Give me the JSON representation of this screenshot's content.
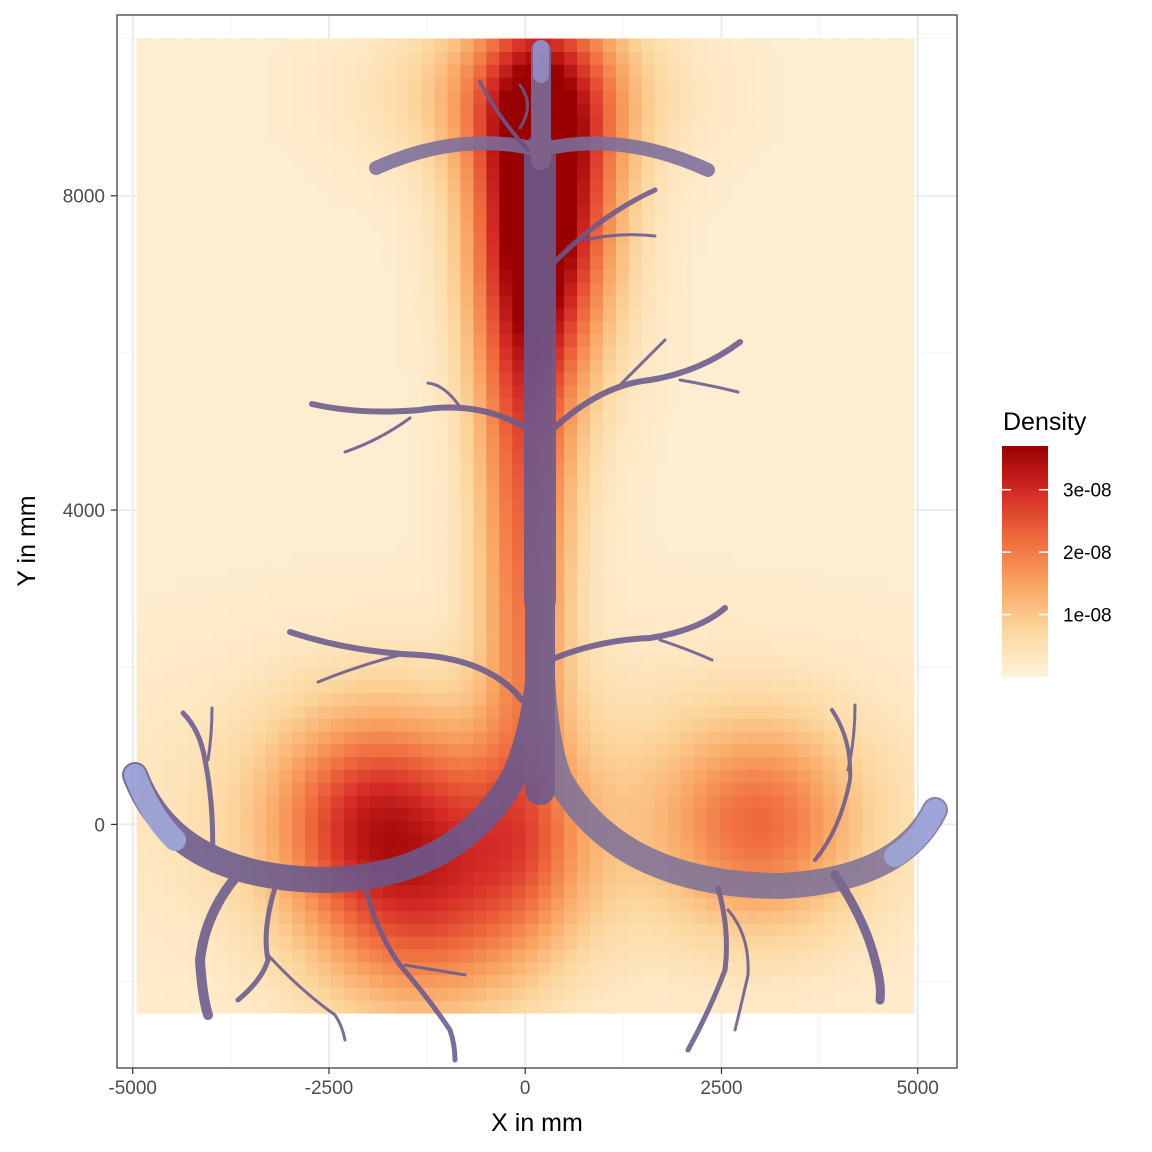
{
  "chart_data": {
    "type": "heatmap",
    "title": "",
    "xlabel": "X in mm",
    "ylabel": "Y in mm",
    "xlim": [
      -5200,
      5500
    ],
    "ylim": [
      -3100,
      10300
    ],
    "density_extent": {
      "x": [
        -4950,
        4950
      ],
      "y": [
        -2400,
        10000
      ]
    },
    "x_ticks": [
      {
        "value": -5000,
        "label": "-5000"
      },
      {
        "value": -2500,
        "label": "-2500"
      },
      {
        "value": 0,
        "label": "0"
      },
      {
        "value": 2500,
        "label": "2500"
      },
      {
        "value": 5000,
        "label": "5000"
      }
    ],
    "y_ticks": [
      {
        "value": 0,
        "label": "0"
      },
      {
        "value": 4000,
        "label": "4000"
      },
      {
        "value": 8000,
        "label": "8000"
      }
    ],
    "grid": true,
    "legend": {
      "title": "Density",
      "placement": "right",
      "range": [
        0,
        3.7e-08
      ],
      "colors": [
        "#fff3dd",
        "#fcd79e",
        "#f9a562",
        "#ef6a3d",
        "#d42b26",
        "#990000"
      ],
      "breaks": [
        {
          "value": 1e-08,
          "label": "1e-08"
        },
        {
          "value": 2e-08,
          "label": "2e-08"
        },
        {
          "value": 3e-08,
          "label": "3e-08"
        }
      ]
    },
    "hotspots": [
      {
        "name": "top-trunk",
        "x": 250,
        "y": 8100,
        "sx": 620,
        "sy": 1600,
        "peak": 3.7e-08
      },
      {
        "name": "trunk-upper",
        "x": 0,
        "y": 5500,
        "sx": 450,
        "sy": 2300,
        "peak": 1.8e-08
      },
      {
        "name": "top-spread",
        "x": 0,
        "y": 9300,
        "sx": 1200,
        "sy": 700,
        "peak": 1.1e-08
      },
      {
        "name": "left-arc",
        "x": -1900,
        "y": 50,
        "sx": 900,
        "sy": 950,
        "peak": 2.4e-08
      },
      {
        "name": "right-arc",
        "x": 3000,
        "y": 0,
        "sx": 850,
        "sy": 900,
        "peak": 1.7e-08
      },
      {
        "name": "center-base",
        "x": -100,
        "y": -300,
        "sx": 700,
        "sy": 900,
        "peak": 1.2e-08
      },
      {
        "name": "lower-left",
        "x": -1300,
        "y": -1400,
        "sx": 950,
        "sy": 900,
        "peak": 1.4e-08
      },
      {
        "name": "trunk-lower",
        "x": 0,
        "y": 2300,
        "sx": 380,
        "sy": 1700,
        "peak": 1e-08
      },
      {
        "name": "band-bottom",
        "x": 0,
        "y": 200,
        "sx": 3500,
        "sy": 1300,
        "peak": 5.5e-09
      }
    ],
    "background_density": 1.5e-09
  },
  "colors": {
    "panel_border": "#333333",
    "grid_major": "#ebebeb",
    "grid_minor": "#f5f5f5",
    "tree_stroke": "#6a5a8e",
    "tree_tip": "#8f9ad6"
  },
  "overlay_image": "pipe-tree-illustration"
}
